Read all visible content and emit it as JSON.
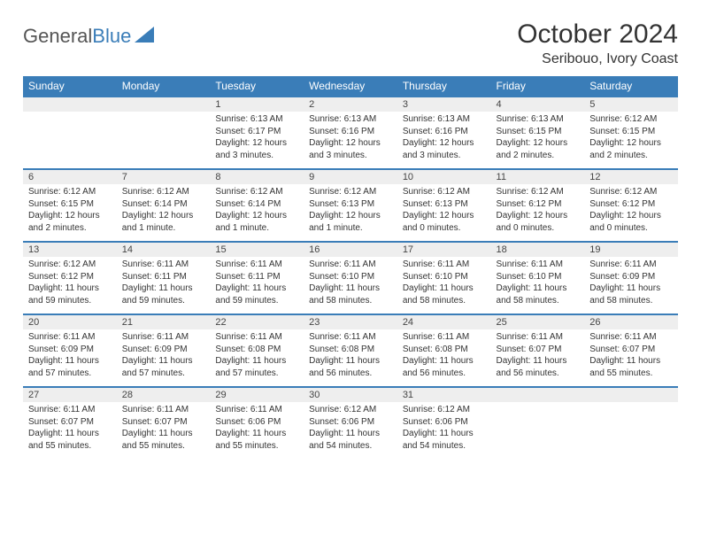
{
  "logo": {
    "text1": "General",
    "text2": "Blue"
  },
  "title": "October 2024",
  "location": "Seribouo, Ivory Coast",
  "colors": {
    "header_bg": "#3a7db8",
    "header_text": "#ffffff",
    "daynum_bg": "#eeeeee",
    "border": "#3a7db8",
    "page_bg": "#ffffff",
    "text": "#333333"
  },
  "daysOfWeek": [
    "Sunday",
    "Monday",
    "Tuesday",
    "Wednesday",
    "Thursday",
    "Friday",
    "Saturday"
  ],
  "weeks": [
    [
      null,
      null,
      {
        "n": "1",
        "sr": "6:13 AM",
        "ss": "6:17 PM",
        "dl": "12 hours and 3 minutes."
      },
      {
        "n": "2",
        "sr": "6:13 AM",
        "ss": "6:16 PM",
        "dl": "12 hours and 3 minutes."
      },
      {
        "n": "3",
        "sr": "6:13 AM",
        "ss": "6:16 PM",
        "dl": "12 hours and 3 minutes."
      },
      {
        "n": "4",
        "sr": "6:13 AM",
        "ss": "6:15 PM",
        "dl": "12 hours and 2 minutes."
      },
      {
        "n": "5",
        "sr": "6:12 AM",
        "ss": "6:15 PM",
        "dl": "12 hours and 2 minutes."
      }
    ],
    [
      {
        "n": "6",
        "sr": "6:12 AM",
        "ss": "6:15 PM",
        "dl": "12 hours and 2 minutes."
      },
      {
        "n": "7",
        "sr": "6:12 AM",
        "ss": "6:14 PM",
        "dl": "12 hours and 1 minute."
      },
      {
        "n": "8",
        "sr": "6:12 AM",
        "ss": "6:14 PM",
        "dl": "12 hours and 1 minute."
      },
      {
        "n": "9",
        "sr": "6:12 AM",
        "ss": "6:13 PM",
        "dl": "12 hours and 1 minute."
      },
      {
        "n": "10",
        "sr": "6:12 AM",
        "ss": "6:13 PM",
        "dl": "12 hours and 0 minutes."
      },
      {
        "n": "11",
        "sr": "6:12 AM",
        "ss": "6:12 PM",
        "dl": "12 hours and 0 minutes."
      },
      {
        "n": "12",
        "sr": "6:12 AM",
        "ss": "6:12 PM",
        "dl": "12 hours and 0 minutes."
      }
    ],
    [
      {
        "n": "13",
        "sr": "6:12 AM",
        "ss": "6:12 PM",
        "dl": "11 hours and 59 minutes."
      },
      {
        "n": "14",
        "sr": "6:11 AM",
        "ss": "6:11 PM",
        "dl": "11 hours and 59 minutes."
      },
      {
        "n": "15",
        "sr": "6:11 AM",
        "ss": "6:11 PM",
        "dl": "11 hours and 59 minutes."
      },
      {
        "n": "16",
        "sr": "6:11 AM",
        "ss": "6:10 PM",
        "dl": "11 hours and 58 minutes."
      },
      {
        "n": "17",
        "sr": "6:11 AM",
        "ss": "6:10 PM",
        "dl": "11 hours and 58 minutes."
      },
      {
        "n": "18",
        "sr": "6:11 AM",
        "ss": "6:10 PM",
        "dl": "11 hours and 58 minutes."
      },
      {
        "n": "19",
        "sr": "6:11 AM",
        "ss": "6:09 PM",
        "dl": "11 hours and 58 minutes."
      }
    ],
    [
      {
        "n": "20",
        "sr": "6:11 AM",
        "ss": "6:09 PM",
        "dl": "11 hours and 57 minutes."
      },
      {
        "n": "21",
        "sr": "6:11 AM",
        "ss": "6:09 PM",
        "dl": "11 hours and 57 minutes."
      },
      {
        "n": "22",
        "sr": "6:11 AM",
        "ss": "6:08 PM",
        "dl": "11 hours and 57 minutes."
      },
      {
        "n": "23",
        "sr": "6:11 AM",
        "ss": "6:08 PM",
        "dl": "11 hours and 56 minutes."
      },
      {
        "n": "24",
        "sr": "6:11 AM",
        "ss": "6:08 PM",
        "dl": "11 hours and 56 minutes."
      },
      {
        "n": "25",
        "sr": "6:11 AM",
        "ss": "6:07 PM",
        "dl": "11 hours and 56 minutes."
      },
      {
        "n": "26",
        "sr": "6:11 AM",
        "ss": "6:07 PM",
        "dl": "11 hours and 55 minutes."
      }
    ],
    [
      {
        "n": "27",
        "sr": "6:11 AM",
        "ss": "6:07 PM",
        "dl": "11 hours and 55 minutes."
      },
      {
        "n": "28",
        "sr": "6:11 AM",
        "ss": "6:07 PM",
        "dl": "11 hours and 55 minutes."
      },
      {
        "n": "29",
        "sr": "6:11 AM",
        "ss": "6:06 PM",
        "dl": "11 hours and 55 minutes."
      },
      {
        "n": "30",
        "sr": "6:12 AM",
        "ss": "6:06 PM",
        "dl": "11 hours and 54 minutes."
      },
      {
        "n": "31",
        "sr": "6:12 AM",
        "ss": "6:06 PM",
        "dl": "11 hours and 54 minutes."
      },
      null,
      null
    ]
  ]
}
